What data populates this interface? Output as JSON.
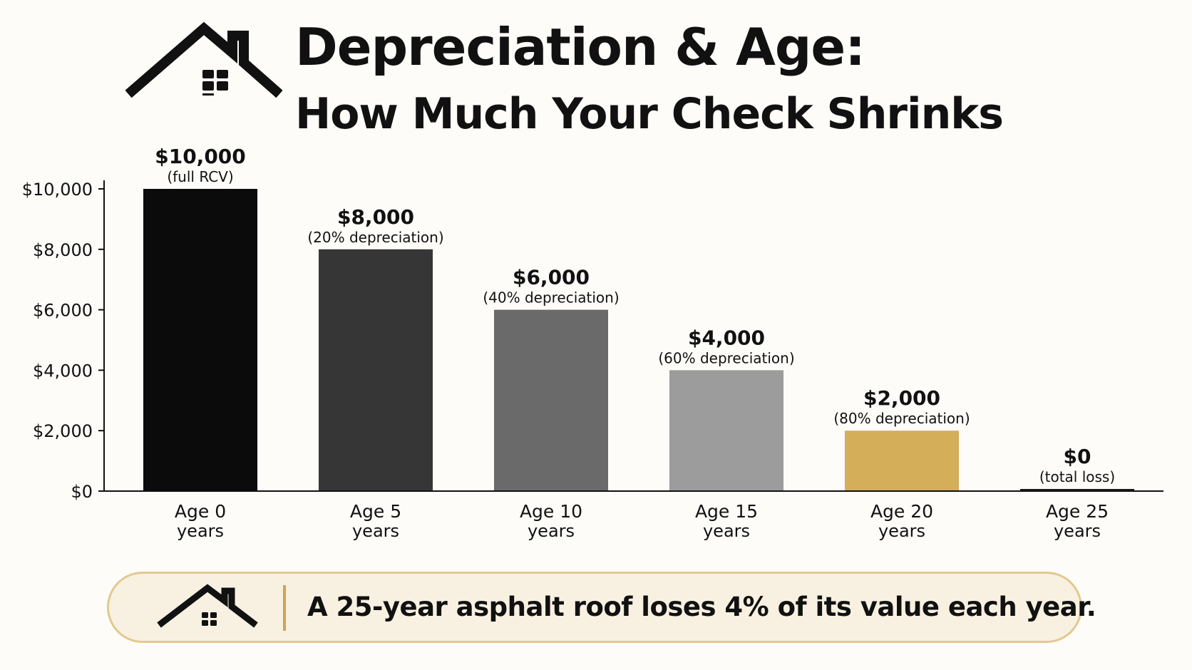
{
  "title": "Depreciation & Age:",
  "subtitle": "How Much Your Check Shrinks",
  "callout": {
    "text": "A 25-year asphalt roof loses 4% of its value each year."
  },
  "icons": {
    "header": "house-icon",
    "callout": "house-icon"
  },
  "colors": {
    "accent": "#d4ae59",
    "bars": [
      "#0b0b0b",
      "#363636",
      "#6a6a6a",
      "#9c9c9c",
      "#d4ae59",
      "#1a1a1a"
    ]
  },
  "chart_data": {
    "type": "bar",
    "categories": [
      [
        "Age 0",
        "years"
      ],
      [
        "Age 5",
        "years"
      ],
      [
        "Age 10",
        "years"
      ],
      [
        "Age 15",
        "years"
      ],
      [
        "Age 20",
        "years"
      ],
      [
        "Age 25",
        "years"
      ]
    ],
    "values": [
      10000,
      8000,
      6000,
      4000,
      2000,
      0
    ],
    "value_labels": [
      "$10,000",
      "$8,000",
      "$6,000",
      "$4,000",
      "$2,000",
      "$0"
    ],
    "sub_labels": [
      "(full RCV)",
      "(20% depreciation)",
      "(40% depreciation)",
      "(60% depreciation)",
      "(80% depreciation)",
      "(total loss)"
    ],
    "yticks": [
      0,
      2000,
      4000,
      6000,
      8000,
      10000
    ],
    "ytick_labels": [
      "$0",
      "$2,000",
      "$4,000",
      "$6,000",
      "$8,000",
      "$10,000"
    ],
    "ylim": [
      0,
      10000
    ],
    "grid": false,
    "legend": "none"
  }
}
